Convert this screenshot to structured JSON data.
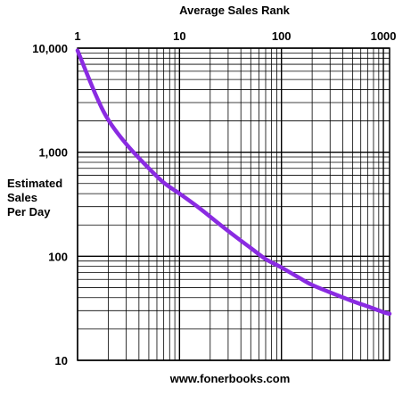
{
  "chart_data": {
    "type": "line",
    "title": "Average Sales Rank",
    "ylabel_lines": [
      "Estimated",
      "Sales",
      "Per Day"
    ],
    "footer": "www.fonerbooks.com",
    "x_scale": "log",
    "y_scale": "log",
    "xlim": [
      1,
      1150
    ],
    "ylim": [
      10,
      10000
    ],
    "x_ticks": [
      {
        "value": 1,
        "label": "1"
      },
      {
        "value": 10,
        "label": "10"
      },
      {
        "value": 100,
        "label": "100"
      },
      {
        "value": 1000,
        "label": "1000"
      }
    ],
    "y_ticks": [
      {
        "value": 10000,
        "label": "10,000"
      },
      {
        "value": 1000,
        "label": "1,000"
      },
      {
        "value": 100,
        "label": "100"
      },
      {
        "value": 10,
        "label": "10"
      }
    ],
    "x_axis_position": "top",
    "grid": true,
    "series": [
      {
        "color": "#8a2be2",
        "x": [
          1,
          1.5,
          2,
          3,
          5,
          7,
          10,
          15,
          20,
          30,
          50,
          70,
          100,
          150,
          200,
          300,
          500,
          700,
          1000,
          1150
        ],
        "values": [
          9500,
          3600,
          2050,
          1200,
          700,
          510,
          400,
          300,
          240,
          175,
          120,
          94,
          78,
          62,
          53,
          45,
          37,
          33,
          29,
          28
        ]
      }
    ]
  }
}
